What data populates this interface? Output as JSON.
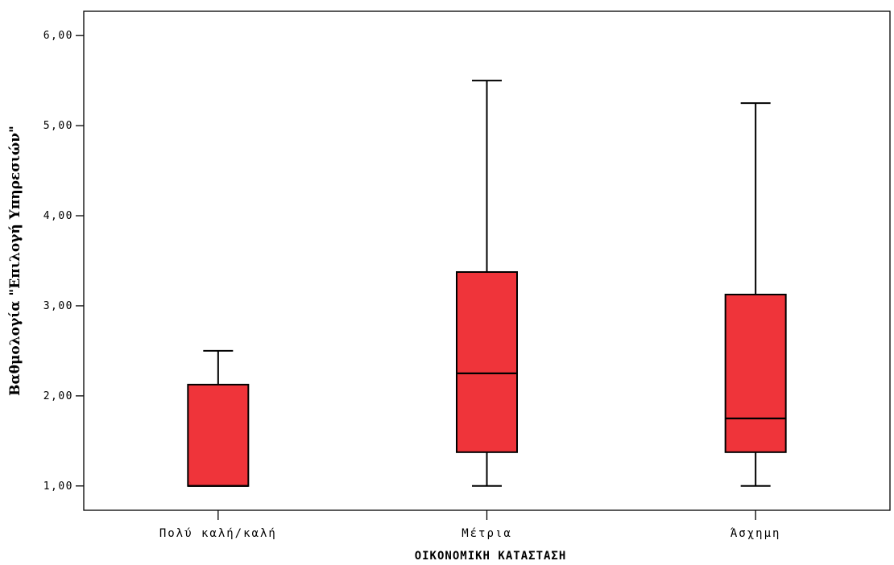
{
  "chart_data": {
    "type": "boxplot",
    "xlabel": "ΟΙΚΟΝΟΜΙΚΗ ΚΑΤΑΣΤΑΣΗ",
    "ylabel": "Βαθμολογία \"Επιλογή Υπηρεσιών\"",
    "ylim": [
      0.73,
      6.27
    ],
    "yticks": [
      1,
      2,
      3,
      4,
      5,
      6
    ],
    "ytick_labels": [
      "1,00",
      "2,00",
      "3,00",
      "4,00",
      "5,00",
      "6,00"
    ],
    "categories": [
      "Πολύ καλή/καλή",
      "Μέτρια",
      "Άσχημη"
    ],
    "boxes": [
      {
        "min": 1.0,
        "q1": 1.0,
        "median": 1.0,
        "q3": 2.125,
        "max": 2.5
      },
      {
        "min": 1.0,
        "q1": 1.375,
        "median": 2.25,
        "q3": 3.375,
        "max": 5.5
      },
      {
        "min": 1.0,
        "q1": 1.375,
        "median": 1.75,
        "q3": 3.125,
        "max": 5.25
      }
    ],
    "box_color": "#ef343a",
    "grid": false,
    "legend": "none"
  }
}
